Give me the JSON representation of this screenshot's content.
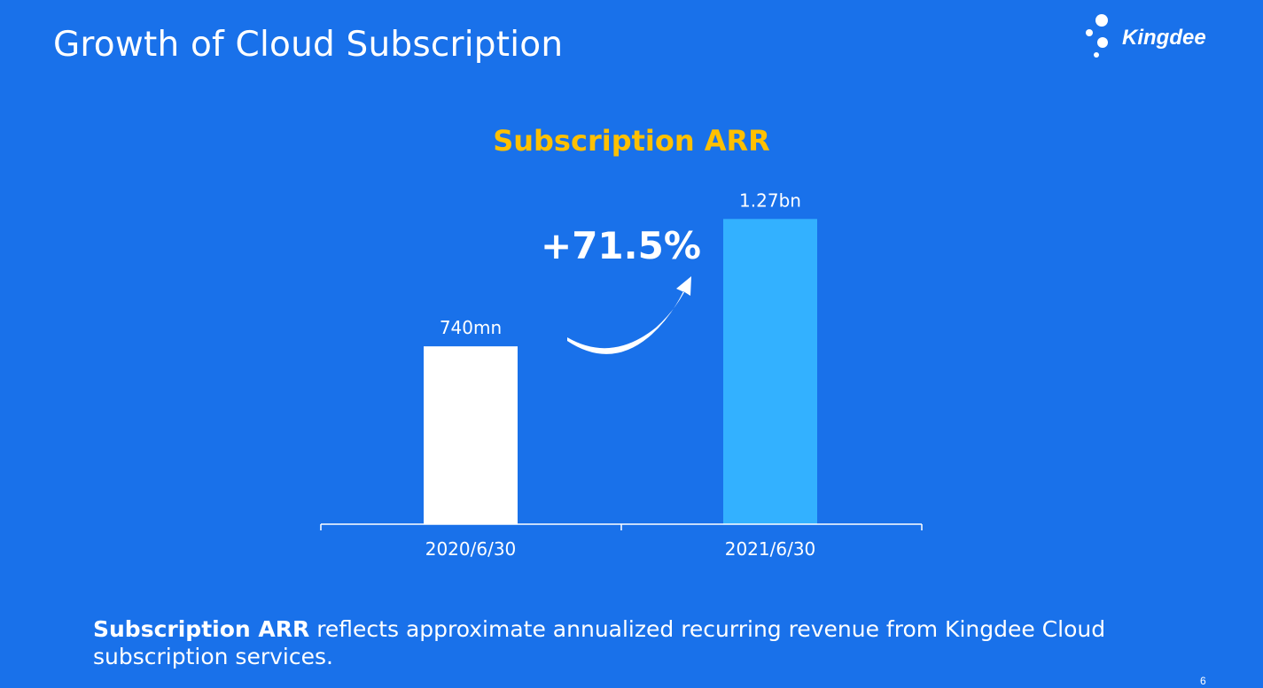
{
  "slide": {
    "title": "Growth of Cloud Subscription",
    "page_number": "6"
  },
  "logo": {
    "text": "Kingdee"
  },
  "growth": {
    "label": "+71.5%"
  },
  "footnote": {
    "term": "Subscription ARR",
    "text": " reflects approximate annualized recurring revenue  from Kingdee Cloud subscription services."
  },
  "colors": {
    "background": "#1971ea",
    "bar_2020": "#ffffff",
    "bar_2021": "#33b1ff",
    "title_accent": "#ffc000"
  },
  "chart_data": {
    "type": "bar",
    "title": "Subscription ARR",
    "categories": [
      "2020/6/30",
      "2021/6/30"
    ],
    "values": [
      0.74,
      1.27
    ],
    "unit": "bn RMB",
    "data_labels": [
      "740mn",
      "1.27bn"
    ],
    "ylim": [
      0,
      1.4
    ],
    "grid": false,
    "legend": "none"
  }
}
